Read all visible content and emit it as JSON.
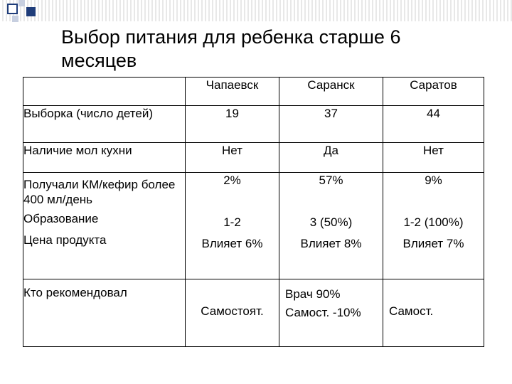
{
  "title": "Выбор питания для ребенка старше 6 месяцев",
  "table": {
    "columns": [
      "Чапаевск",
      "Саранск",
      "Саратов"
    ],
    "rows": {
      "sample": {
        "label": "Выборка  (число детей)",
        "values": [
          "19",
          "37",
          "44"
        ]
      },
      "kitchen": {
        "label": "Наличие мол кухни",
        "values": [
          "Нет",
          "Да",
          "Нет"
        ]
      },
      "kefir": {
        "label": "Получали КМ/кефир более 400 мл/день",
        "values": [
          "2%",
          "57%",
          "9%"
        ]
      },
      "education": {
        "label": "Образование",
        "values": [
          "1-2",
          "3 (50%)",
          "1-2 (100%)"
        ]
      },
      "price": {
        "label": "Цена продукта",
        "values": [
          "Влияет 6%",
          "Влияет 8%",
          "Влияет 7%"
        ]
      },
      "recommended": {
        "label": "Кто рекомендовал",
        "chapaevsk": "Самостоят.",
        "saransk": [
          "Врач 90%",
          "Самост. -10%"
        ],
        "saratov": "Самост."
      }
    }
  },
  "colors": {
    "decor_square": "#1f3d7a",
    "decor_square_light": "#c7cfe0",
    "decor_stripe": "#e8e8e8"
  }
}
